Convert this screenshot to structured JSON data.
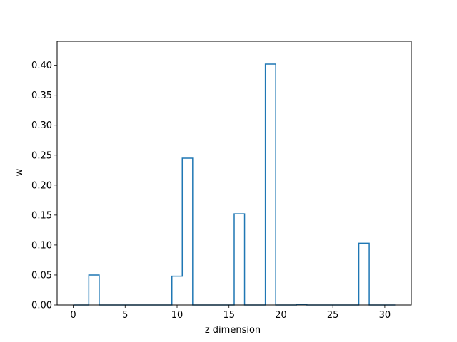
{
  "chart_data": {
    "type": "step",
    "title": "",
    "xlabel": "z dimension",
    "ylabel": "w",
    "xlim": [
      -1.55,
      32.55
    ],
    "ylim": [
      0,
      0.44
    ],
    "xticks": [
      0,
      5,
      10,
      15,
      20,
      25,
      30
    ],
    "xtick_labels": [
      "0",
      "5",
      "10",
      "15",
      "20",
      "25",
      "30"
    ],
    "yticks": [
      0.0,
      0.05,
      0.1,
      0.15,
      0.2,
      0.25,
      0.3,
      0.35,
      0.4
    ],
    "ytick_labels": [
      "0.00",
      "0.05",
      "0.10",
      "0.15",
      "0.20",
      "0.25",
      "0.30",
      "0.35",
      "0.40"
    ],
    "grid": false,
    "color": "#1f77b4",
    "series": [
      {
        "x": [
          0,
          1,
          2,
          3,
          4,
          5,
          6,
          7,
          8,
          9,
          10,
          11,
          12,
          13,
          14,
          15,
          16,
          17,
          18,
          19,
          20,
          21,
          22,
          23,
          24,
          25,
          26,
          27,
          28,
          29,
          30,
          31
        ],
        "values": [
          0,
          0,
          0.05,
          0,
          0,
          0,
          0,
          0,
          0,
          0,
          0.048,
          0.245,
          0,
          0,
          0,
          0,
          0.152,
          0,
          0,
          0.402,
          0,
          0,
          0.001,
          0,
          0,
          0,
          0,
          0,
          0.103,
          0,
          0,
          0
        ]
      }
    ]
  }
}
